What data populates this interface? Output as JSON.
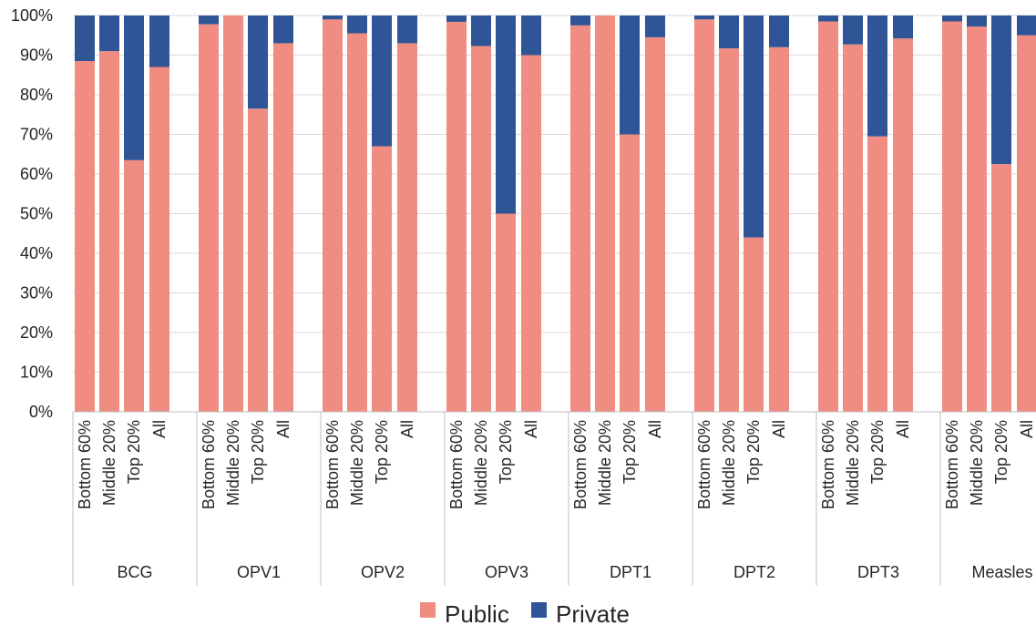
{
  "chart_data": {
    "type": "bar",
    "stacked": true,
    "percent_stacked": true,
    "title": "",
    "xlabel": "",
    "ylabel": "",
    "ylim": [
      0,
      100
    ],
    "y_ticks": [
      "0%",
      "10%",
      "20%",
      "30%",
      "40%",
      "50%",
      "60%",
      "70%",
      "80%",
      "90%",
      "100%"
    ],
    "grid": true,
    "legend_position": "bottom",
    "groups": [
      "BCG",
      "OPV1",
      "OPV2",
      "OPV3",
      "DPT1",
      "DPT2",
      "DPT3",
      "Measles"
    ],
    "subcategories": [
      "Bottom 60%",
      "Middle 20%",
      "Top 20%",
      "All"
    ],
    "series": [
      {
        "name": "Public",
        "color": "#F08C82",
        "values": [
          [
            88.5,
            91,
            63.5,
            87
          ],
          [
            97.8,
            100,
            76.5,
            93
          ],
          [
            99,
            95.5,
            67,
            93
          ],
          [
            98.4,
            92.3,
            50,
            90
          ],
          [
            97.5,
            100,
            70,
            94.5
          ],
          [
            99,
            91.7,
            44,
            92
          ],
          [
            98.5,
            92.7,
            69.5,
            94.2
          ],
          [
            98.5,
            97.2,
            62.5,
            95
          ]
        ]
      },
      {
        "name": "Private",
        "color": "#2F5597",
        "values": [
          [
            11.5,
            9,
            36.5,
            13
          ],
          [
            2.2,
            0,
            23.5,
            7
          ],
          [
            1,
            4.5,
            33,
            7
          ],
          [
            1.6,
            7.7,
            50,
            10
          ],
          [
            2.5,
            0,
            30,
            5.5
          ],
          [
            1,
            8.3,
            56,
            8
          ],
          [
            1.5,
            7.3,
            30.5,
            5.8
          ],
          [
            1.5,
            2.8,
            37.5,
            5
          ]
        ]
      }
    ]
  }
}
